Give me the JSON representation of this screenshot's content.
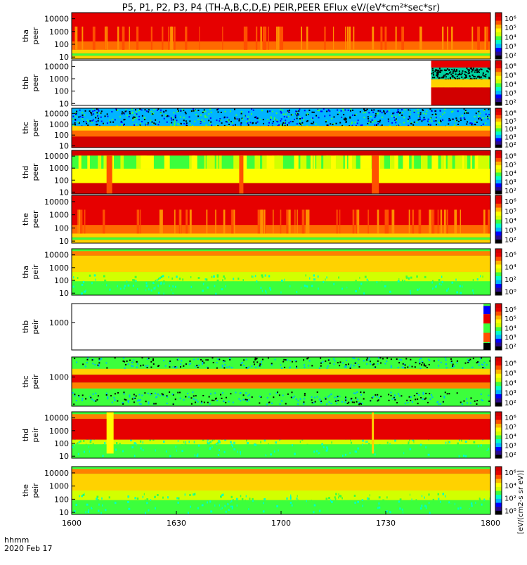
{
  "title": "P5, P1, P2, P3, P4 (TH-A,B,C,D,E) PEIR,PEER EFlux eV/(eV*cm²*sec*sr)",
  "chart_data": {
    "type": "heatmap",
    "x_axis": {
      "label": "hhmm",
      "date": "2020 Feb 17",
      "range": [
        "1600",
        "1800"
      ],
      "ticks": [
        "1600",
        "1630",
        "1700",
        "1730",
        "1800"
      ]
    },
    "colorbar": {
      "label": "[eV/(cm2-s sr eV)]",
      "scale": "log",
      "colors": [
        "#000000",
        "#2a0a8c",
        "#0000ff",
        "#00b4ff",
        "#00ffc8",
        "#3cff3c",
        "#d2ff00",
        "#ffff00",
        "#ffb400",
        "#ff5000",
        "#e60000",
        "#d20000"
      ]
    },
    "panels": [
      {
        "name": "tha peer",
        "species": "tha",
        "mode": "peer",
        "y_scale": "log",
        "y_range": [
          7,
          30000
        ],
        "y_ticks": [
          "10000",
          "1000",
          "100",
          "10"
        ],
        "cbar_ticks": [
          "10⁶",
          "10⁵",
          "10⁴",
          "10³",
          "10²"
        ],
        "fill": "full",
        "pattern": "hot"
      },
      {
        "name": "thb peer",
        "species": "thb",
        "mode": "peer",
        "y_scale": "log",
        "y_range": [
          7,
          30000
        ],
        "y_ticks": [
          "10000",
          "1000",
          "100",
          "10"
        ],
        "cbar_ticks": [
          "10⁶",
          "10⁵",
          "10⁴",
          "10³",
          "10²"
        ],
        "fill": "late",
        "coverage_start": "1743",
        "pattern": "hot"
      },
      {
        "name": "thc peer",
        "species": "thc",
        "mode": "peer",
        "y_scale": "log",
        "y_range": [
          7,
          30000
        ],
        "y_ticks": [
          "10000",
          "1000",
          "100",
          "10"
        ],
        "cbar_ticks": [
          "10⁶",
          "10⁵",
          "10⁴",
          "10³",
          "10²"
        ],
        "fill": "full",
        "pattern": "noisy-top"
      },
      {
        "name": "thd peer",
        "species": "thd",
        "mode": "peer",
        "y_scale": "log",
        "y_range": [
          7,
          30000
        ],
        "y_ticks": [
          "10000",
          "1000",
          "100",
          "10"
        ],
        "cbar_ticks": [
          "10⁶",
          "10⁵",
          "10⁴",
          "10³",
          "10²"
        ],
        "fill": "full",
        "pattern": "variable"
      },
      {
        "name": "the peer",
        "species": "the",
        "mode": "peer",
        "y_scale": "log",
        "y_range": [
          7,
          30000
        ],
        "y_ticks": [
          "10000",
          "1000",
          "100",
          "10"
        ],
        "cbar_ticks": [
          "10⁶",
          "10⁵",
          "10⁴",
          "10³",
          "10²"
        ],
        "fill": "full",
        "pattern": "hot"
      },
      {
        "name": "tha peir",
        "species": "tha",
        "mode": "peir",
        "y_scale": "log",
        "y_range": [
          7,
          30000
        ],
        "y_ticks": [
          "10000",
          "1000",
          "100",
          "10"
        ],
        "cbar_ticks": [
          "10⁶",
          "10⁴",
          "10²",
          "10⁰"
        ],
        "fill": "full",
        "pattern": "ion"
      },
      {
        "name": "thb peir",
        "species": "thb",
        "mode": "peir",
        "y_scale": "log",
        "y_range": [
          7,
          30000
        ],
        "y_ticks": [
          "1000"
        ],
        "cbar_ticks": [
          "10⁶",
          "10⁵",
          "10⁴",
          "10³",
          "10²"
        ],
        "fill": "edge",
        "coverage_start": "1758",
        "pattern": "ion"
      },
      {
        "name": "thc peir",
        "species": "thc",
        "mode": "peir",
        "y_scale": "log",
        "y_range": [
          7,
          30000
        ],
        "y_ticks": [
          "1000"
        ],
        "cbar_ticks": [
          "10⁶",
          "10⁵",
          "10⁴",
          "10³",
          "10²"
        ],
        "fill": "full",
        "pattern": "noisy-both"
      },
      {
        "name": "thd peir",
        "species": "thd",
        "mode": "peir",
        "y_scale": "log",
        "y_range": [
          7,
          30000
        ],
        "y_ticks": [
          "10000",
          "1000",
          "100",
          "10"
        ],
        "cbar_ticks": [
          "10⁶",
          "10⁵",
          "10⁴",
          "10³",
          "10²"
        ],
        "fill": "full",
        "pattern": "ion-hot"
      },
      {
        "name": "the peir",
        "species": "the",
        "mode": "peir",
        "y_scale": "log",
        "y_range": [
          7,
          30000
        ],
        "y_ticks": [
          "10000",
          "1000",
          "100",
          "10"
        ],
        "cbar_ticks": [
          "10⁶",
          "10⁴",
          "10²",
          "10⁰"
        ],
        "fill": "full",
        "pattern": "ion"
      }
    ]
  }
}
